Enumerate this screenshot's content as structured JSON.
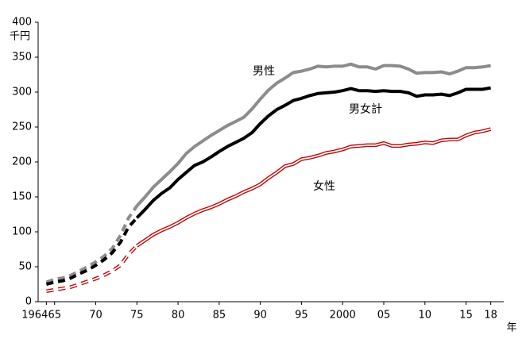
{
  "chart_data": {
    "type": "line",
    "y_unit": "千円",
    "x_unit": "年",
    "x": [
      1964,
      1965,
      1966,
      1967,
      1968,
      1969,
      1970,
      1971,
      1972,
      1973,
      1974,
      1975,
      1976,
      1977,
      1978,
      1979,
      1980,
      1981,
      1982,
      1983,
      1984,
      1985,
      1986,
      1987,
      1988,
      1989,
      1990,
      1991,
      1992,
      1993,
      1994,
      1995,
      1996,
      1997,
      1998,
      1999,
      2000,
      2001,
      2002,
      2003,
      2004,
      2005,
      2006,
      2007,
      2008,
      2009,
      2010,
      2011,
      2012,
      2013,
      2014,
      2015,
      2016,
      2017,
      2018
    ],
    "dashed_until": 1975,
    "series": [
      {
        "name": "男性",
        "color": "#8c8c8c",
        "style": "single",
        "values": [
          28,
          32,
          34,
          38,
          44,
          50,
          57,
          65,
          76,
          95,
          120,
          137,
          150,
          164,
          175,
          186,
          198,
          212,
          222,
          230,
          238,
          245,
          252,
          258,
          264,
          276,
          290,
          303,
          313,
          320,
          328,
          330,
          333,
          337,
          336,
          337,
          337,
          340,
          336,
          336,
          333,
          338,
          338,
          337,
          333,
          327,
          328,
          328,
          329,
          326,
          330,
          335,
          335,
          336,
          338
        ]
      },
      {
        "name": "男女計",
        "color": "#000000",
        "style": "single",
        "values": [
          25,
          28,
          30,
          34,
          40,
          45,
          52,
          60,
          70,
          85,
          107,
          120,
          132,
          145,
          155,
          163,
          175,
          185,
          195,
          200,
          207,
          215,
          222,
          228,
          234,
          242,
          255,
          266,
          275,
          281,
          288,
          291,
          295,
          298,
          299,
          300,
          302,
          305,
          302,
          302,
          301,
          302,
          301,
          301,
          299,
          294,
          296,
          296,
          297,
          295,
          299,
          304,
          304,
          304,
          306
        ]
      },
      {
        "name": "女性",
        "color": "#c00000",
        "style": "double",
        "values": [
          15,
          17,
          19,
          21,
          25,
          29,
          33,
          38,
          44,
          52,
          68,
          80,
          88,
          96,
          102,
          107,
          113,
          120,
          126,
          131,
          135,
          140,
          146,
          151,
          157,
          162,
          168,
          177,
          185,
          194,
          197,
          204,
          206,
          209,
          213,
          215,
          218,
          222,
          223,
          224,
          224,
          227,
          223,
          223,
          225,
          226,
          228,
          227,
          231,
          232,
          232,
          238,
          242,
          244,
          247
        ]
      }
    ],
    "xlim": [
      1963,
      2019
    ],
    "ylim": [
      0,
      400
    ],
    "yticks": [
      0,
      50,
      100,
      150,
      200,
      250,
      300,
      350,
      400
    ],
    "xticks": [
      {
        "value": 1964,
        "label": "1964"
      },
      {
        "value": 1965,
        "label": "65"
      },
      {
        "value": 1970,
        "label": "70"
      },
      {
        "value": 1975,
        "label": "75"
      },
      {
        "value": 1980,
        "label": "80"
      },
      {
        "value": 1985,
        "label": "85"
      },
      {
        "value": 1990,
        "label": "90"
      },
      {
        "value": 1995,
        "label": "95"
      },
      {
        "value": 2000,
        "label": "2000"
      },
      {
        "value": 2005,
        "label": "05"
      },
      {
        "value": 2010,
        "label": "10"
      },
      {
        "value": 2015,
        "label": "15"
      },
      {
        "value": 2018,
        "label": "18"
      }
    ],
    "grid": false
  }
}
